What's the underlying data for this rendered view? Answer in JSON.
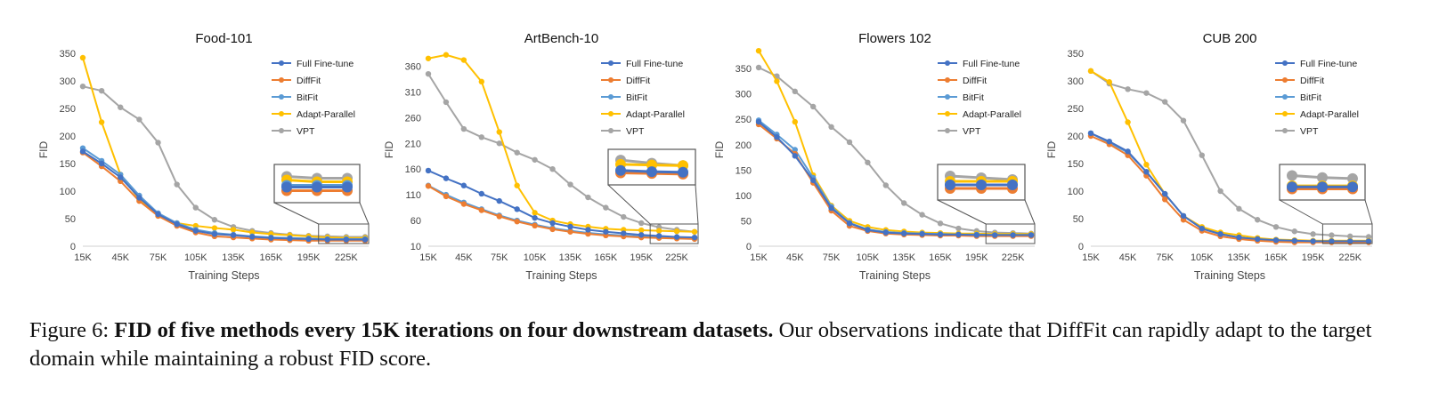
{
  "caption": {
    "prefix": "Figure 6: ",
    "bold": "FID of five methods every 15K iterations on four downstream datasets.",
    "rest": " Our observations indicate that DiffFit can rapidly adapt to the target domain while maintaining a robust FID score."
  },
  "colors": {
    "Full Fine-tune": "#4472c4",
    "DiffFit": "#ed7d31",
    "BitFit": "#5b9bd5",
    "Adapt-Parallel": "#ffc000",
    "VPT": "#a5a5a5"
  },
  "chart_data": [
    {
      "type": "line",
      "title": "Food-101",
      "xlabel": "Training Steps",
      "ylabel": "FID",
      "x": [
        15,
        30,
        45,
        60,
        75,
        90,
        105,
        120,
        135,
        150,
        165,
        180,
        195,
        210,
        225,
        240
      ],
      "xticks": [
        "15K",
        "45K",
        "75K",
        "105K",
        "135K",
        "165K",
        "195K",
        "225K"
      ],
      "yticks": [
        0,
        50,
        100,
        150,
        200,
        250,
        300,
        350
      ],
      "ylim": [
        0,
        350
      ],
      "legend": "top-right",
      "grid": false,
      "inset": "bottom-right zoom",
      "series": [
        {
          "name": "Full Fine-tune",
          "values": [
            172,
            150,
            125,
            88,
            58,
            40,
            28,
            22,
            20,
            17,
            15,
            14,
            13,
            12,
            12,
            12
          ]
        },
        {
          "name": "DiffFit",
          "values": [
            170,
            145,
            118,
            82,
            55,
            37,
            25,
            18,
            16,
            14,
            12,
            11,
            10,
            10,
            10,
            10
          ]
        },
        {
          "name": "BitFit",
          "values": [
            178,
            155,
            130,
            92,
            60,
            42,
            30,
            24,
            21,
            18,
            16,
            15,
            14,
            13,
            13,
            13
          ]
        },
        {
          "name": "Adapt-Parallel",
          "values": [
            342,
            225,
            130,
            85,
            55,
            42,
            37,
            33,
            30,
            25,
            22,
            20,
            18,
            16,
            15,
            15
          ]
        },
        {
          "name": "VPT",
          "values": [
            290,
            282,
            252,
            230,
            188,
            112,
            70,
            48,
            35,
            28,
            24,
            21,
            19,
            18,
            17,
            17
          ]
        }
      ]
    },
    {
      "type": "line",
      "title": "ArtBench-10",
      "xlabel": "Training Steps",
      "ylabel": "FID",
      "x": [
        15,
        30,
        45,
        60,
        75,
        90,
        105,
        120,
        135,
        150,
        165,
        180,
        195,
        210,
        225,
        240
      ],
      "xticks": [
        "15K",
        "45K",
        "75K",
        "105K",
        "135K",
        "165K",
        "195K",
        "225K"
      ],
      "yticks": [
        10,
        60,
        110,
        160,
        210,
        260,
        310,
        360
      ],
      "ylim": [
        10,
        385
      ],
      "legend": "top-right",
      "grid": false,
      "inset": "bottom-right zoom",
      "series": [
        {
          "name": "Full Fine-tune",
          "values": [
            157,
            142,
            128,
            112,
            98,
            82,
            65,
            55,
            48,
            42,
            38,
            35,
            32,
            30,
            28,
            27
          ]
        },
        {
          "name": "DiffFit",
          "values": [
            127,
            107,
            92,
            80,
            68,
            58,
            50,
            43,
            38,
            34,
            31,
            29,
            27,
            26,
            25,
            24
          ]
        },
        {
          "name": "BitFit",
          "values": [
            128,
            110,
            95,
            82,
            70,
            60,
            52,
            45,
            40,
            36,
            33,
            31,
            29,
            28,
            27,
            26
          ]
        },
        {
          "name": "Adapt-Parallel",
          "values": [
            375,
            382,
            372,
            330,
            232,
            128,
            75,
            60,
            53,
            48,
            44,
            42,
            41,
            40,
            39,
            38
          ]
        },
        {
          "name": "VPT",
          "values": [
            345,
            290,
            238,
            222,
            210,
            192,
            178,
            160,
            130,
            105,
            85,
            67,
            55,
            47,
            42,
            38
          ]
        }
      ]
    },
    {
      "type": "line",
      "title": "Flowers 102",
      "xlabel": "Training Steps",
      "ylabel": "FID",
      "x": [
        15,
        30,
        45,
        60,
        75,
        90,
        105,
        120,
        135,
        150,
        165,
        180,
        195,
        210,
        225,
        240
      ],
      "xticks": [
        "15K",
        "45K",
        "75K",
        "105K",
        "135K",
        "165K",
        "195K",
        "225K"
      ],
      "yticks": [
        0,
        50,
        100,
        150,
        200,
        250,
        300,
        350
      ],
      "ylim": [
        0,
        380
      ],
      "legend": "top-right",
      "grid": false,
      "inset": "bottom-right zoom",
      "series": [
        {
          "name": "Full Fine-tune",
          "values": [
            245,
            215,
            178,
            130,
            75,
            45,
            32,
            27,
            25,
            24,
            23,
            23,
            22,
            22,
            22,
            22
          ]
        },
        {
          "name": "DiffFit",
          "values": [
            240,
            212,
            182,
            125,
            70,
            40,
            30,
            25,
            23,
            22,
            21,
            21,
            20,
            20,
            20,
            20
          ]
        },
        {
          "name": "BitFit",
          "values": [
            248,
            220,
            190,
            135,
            78,
            46,
            33,
            28,
            26,
            25,
            24,
            23,
            23,
            22,
            22,
            22
          ]
        },
        {
          "name": "Adapt-Parallel",
          "values": [
            385,
            325,
            245,
            140,
            80,
            50,
            38,
            32,
            29,
            27,
            26,
            25,
            25,
            24,
            24,
            24
          ]
        },
        {
          "name": "VPT",
          "values": [
            352,
            335,
            305,
            275,
            235,
            205,
            165,
            120,
            85,
            62,
            45,
            35,
            30,
            27,
            26,
            25
          ]
        }
      ]
    },
    {
      "type": "line",
      "title": "CUB 200",
      "xlabel": "Training Steps",
      "ylabel": "FID",
      "x": [
        15,
        30,
        45,
        60,
        75,
        90,
        105,
        120,
        135,
        150,
        165,
        180,
        195,
        210,
        225,
        240
      ],
      "xticks": [
        "15K",
        "45K",
        "75K",
        "105K",
        "135K",
        "165K",
        "195K",
        "225K"
      ],
      "yticks": [
        0,
        50,
        100,
        150,
        200,
        250,
        300,
        350
      ],
      "ylim": [
        0,
        350
      ],
      "legend": "top-right",
      "grid": false,
      "inset": "bottom-right zoom",
      "series": [
        {
          "name": "Full Fine-tune",
          "values": [
            205,
            190,
            172,
            135,
            95,
            55,
            32,
            22,
            16,
            13,
            11,
            10,
            9,
            9,
            9,
            9
          ]
        },
        {
          "name": "DiffFit",
          "values": [
            200,
            185,
            165,
            128,
            85,
            48,
            28,
            18,
            13,
            10,
            8,
            7,
            7,
            7,
            7,
            7
          ]
        },
        {
          "name": "BitFit",
          "values": [
            205,
            188,
            170,
            135,
            95,
            55,
            32,
            22,
            16,
            12,
            10,
            9,
            8,
            8,
            8,
            8
          ]
        },
        {
          "name": "Adapt-Parallel",
          "values": [
            318,
            298,
            225,
            148,
            95,
            55,
            35,
            25,
            20,
            15,
            12,
            11,
            10,
            10,
            10,
            10
          ]
        },
        {
          "name": "VPT",
          "values": [
            318,
            295,
            285,
            278,
            262,
            228,
            165,
            100,
            68,
            48,
            35,
            27,
            22,
            20,
            18,
            17
          ]
        }
      ]
    }
  ]
}
